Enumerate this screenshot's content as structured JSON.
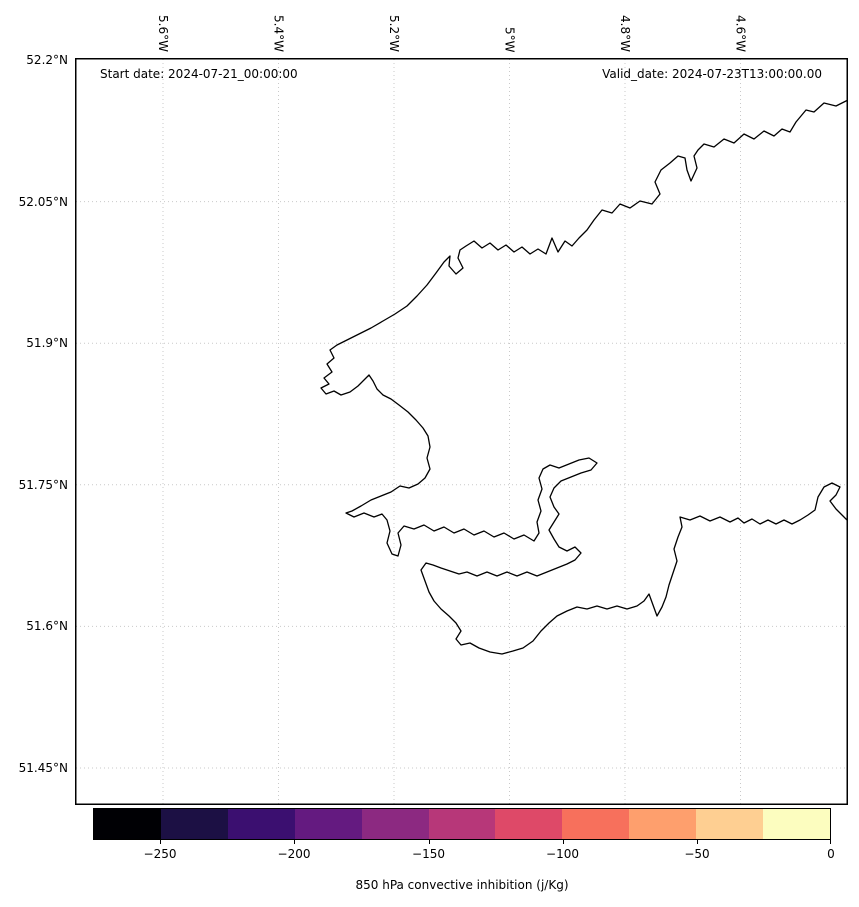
{
  "annotations": {
    "start_date": "Start date: 2024-07-21_00:00:00",
    "valid_date": "Valid_date: 2024-07-23T13:00:00.00"
  },
  "axes": {
    "x_tick_labels": [
      "5.6°W",
      "5.4°W",
      "5.2°W",
      "5°W",
      "4.8°W",
      "4.6°W"
    ],
    "y_tick_labels": [
      "52.2°N",
      "52.05°N",
      "51.9°N",
      "51.75°N",
      "51.6°N",
      "51.45°N"
    ]
  },
  "colorbar": {
    "label": "850 hPa convective inhibition (j/Kg)",
    "tick_labels": [
      "−250",
      "−200",
      "−150",
      "−100",
      "−50",
      "0"
    ],
    "tick_values": [
      -250,
      -200,
      -150,
      -100,
      -50,
      0
    ],
    "value_range": [
      -275,
      0
    ],
    "colormap": "magma",
    "colors": [
      "#000004",
      "#1c1044",
      "#3b0f70",
      "#641a80",
      "#8c2981",
      "#b73779",
      "#de4968",
      "#f7705c",
      "#fe9f6d",
      "#fecf92",
      "#fcfdbf"
    ]
  },
  "chart_data": {
    "type": "map",
    "region": "Coastline of south-west Wales, UK (Pembrokeshire, Milford Haven, Carmarthen Bay)",
    "x_axis": {
      "side": "top",
      "tick_labels": [
        "5.6°W",
        "5.4°W",
        "5.2°W",
        "5°W",
        "4.8°W",
        "4.6°W"
      ],
      "approx_range": [
        "5.75°W",
        "4.41°W"
      ],
      "tick_label_rotation_deg": 90
    },
    "y_axis": {
      "side": "left",
      "tick_labels": [
        "52.2°N",
        "52.05°N",
        "51.9°N",
        "51.75°N",
        "51.6°N",
        "51.45°N"
      ],
      "approx_range": [
        "51.41°N",
        "52.2°N"
      ]
    },
    "grid": "dotted light-gray gridlines at each tick",
    "annotations": [
      "Start date: 2024-07-21_00:00:00",
      "Valid_date: 2024-07-23T13:00:00.00"
    ],
    "colorbar": {
      "label": "850 hPa convective inhibition (j/Kg)",
      "orientation": "horizontal",
      "ticks": [
        -250,
        -200,
        -150,
        -100,
        -50,
        0
      ],
      "range": [
        -275,
        0
      ],
      "segments": 11,
      "colormap": "magma"
    },
    "field_note": "No shaded CIN field visible; map interior is blank white with a black coastline outline only"
  }
}
